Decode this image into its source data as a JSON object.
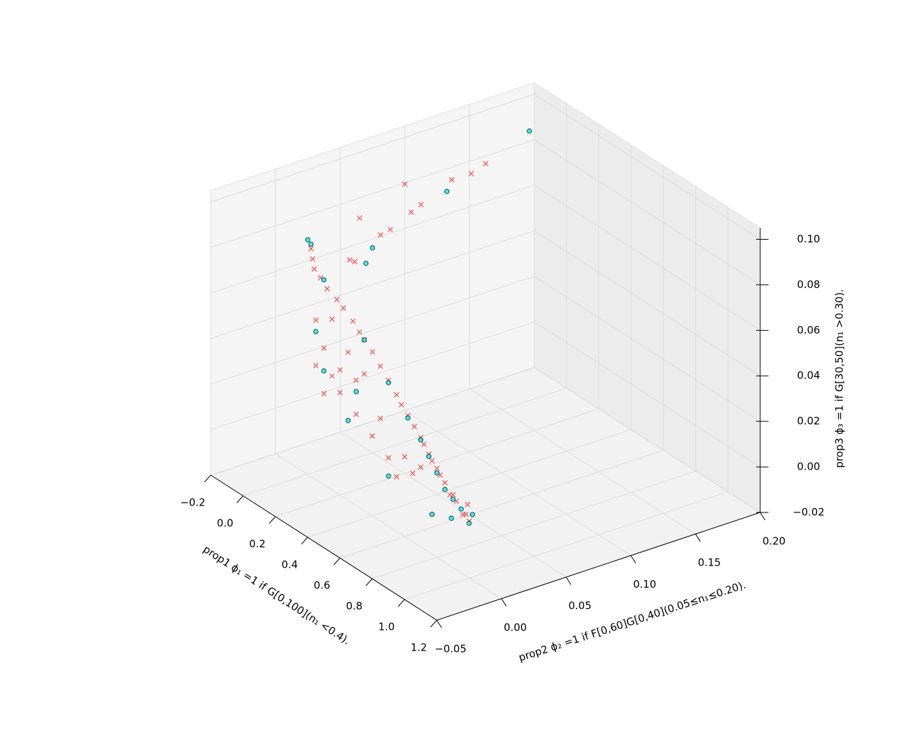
{
  "chart_data": {
    "type": "scatter3d",
    "xlabel": "prop1 ϕ₁ =1 if G[0,100](n₁ <0.4).",
    "ylabel": "prop2 ϕ₂ =1 if F[0,60]G[0,40](0.05≤n₁≤0.20).",
    "zlabel": "prop3 ϕ₃ =1 if G[30,50](n₁ >0.30).",
    "xlim": [
      -0.2,
      1.2
    ],
    "ylim": [
      -0.05,
      0.2
    ],
    "zlim": [
      -0.02,
      0.105
    ],
    "xticks": [
      {
        "value": -0.2,
        "label": "−0.2"
      },
      {
        "value": 0,
        "label": "0.0"
      },
      0.2,
      0.4,
      0.6,
      0.8,
      {
        "value": 1,
        "label": "1.0"
      },
      1.2
    ],
    "yticks": [
      {
        "value": -0.05,
        "label": "−0.05"
      },
      {
        "value": 0,
        "label": "0.00"
      },
      0.05,
      {
        "value": 0.1,
        "label": "0.10"
      },
      0.15,
      {
        "value": 0.2,
        "label": "0.20"
      }
    ],
    "zticks": [
      {
        "value": -0.02,
        "label": "−0.02"
      },
      {
        "value": 0,
        "label": "0.00"
      },
      0.02,
      0.04,
      0.06,
      0.08,
      {
        "value": 0.1,
        "label": "0.10"
      }
    ],
    "grid": true,
    "series": [
      {
        "marker": "x",
        "color": "#ff0000",
        "x": [
          1.0,
          0.98,
          0.96,
          0.95,
          0.92,
          0.9,
          0.88,
          0.85,
          0.82,
          0.8,
          0.77,
          0.75,
          0.72,
          0.7,
          0.66,
          0.62,
          0.58,
          0.55,
          0.5,
          0.45,
          0.4,
          0.35,
          0.32,
          0.28,
          0.22,
          0.18,
          0.12,
          0.08,
          0.04,
          0.03,
          0.02,
          0.1,
          0.2,
          0.3,
          0.4,
          0.5,
          0.55,
          0.1,
          0.2,
          0.3,
          0.15,
          0.05,
          0.45,
          0.6,
          0.65,
          0.05,
          0.25,
          0.35,
          0.7,
          0.15,
          0.1,
          0.05,
          0.0,
          -0.1,
          -0.15,
          -0.19,
          -0.18,
          0.0,
          -0.05,
          0.05,
          -0.12
        ],
        "y": [
          0.0,
          0.0,
          0.0,
          0.005,
          0.0,
          0.0,
          0.0,
          0.0,
          0.0,
          0.0,
          0.0,
          0.0,
          0.0,
          0.0,
          0.0,
          0.0,
          0.0,
          0.0,
          0.0,
          0.0,
          0.0,
          0.0,
          0.0,
          0.0,
          0.0,
          0.0,
          0.0,
          0.0,
          0.0,
          0.0,
          0.0,
          0.0,
          0.0,
          0.0,
          0.0,
          0.0,
          0.0,
          0.0,
          0.0,
          0.0,
          0.0,
          0.0,
          0.0,
          0.0,
          0.0,
          0.0,
          0.0,
          0.0,
          0.0,
          0.0,
          0.02,
          0.05,
          0.08,
          0.1,
          0.13,
          0.15,
          0.16,
          0.04,
          0.07,
          0.03,
          0.09
        ],
        "z": [
          0.005,
          0.007,
          0.006,
          0.009,
          0.01,
          0.012,
          0.011,
          0.015,
          0.017,
          0.019,
          0.021,
          0.023,
          0.026,
          0.028,
          0.031,
          0.034,
          0.037,
          0.04,
          0.044,
          0.048,
          0.052,
          0.055,
          0.057,
          0.06,
          0.063,
          0.065,
          0.067,
          0.07,
          0.072,
          0.076,
          0.08,
          0.02,
          0.025,
          0.02,
          0.015,
          0.01,
          0.004,
          0.04,
          0.035,
          0.035,
          0.055,
          0.05,
          0.025,
          0.015,
          0.01,
          0.03,
          0.045,
          0.04,
          0.015,
          0.03,
          0.075,
          0.078,
          0.08,
          0.075,
          0.078,
          0.075,
          0.078,
          0.085,
          0.072,
          0.07,
          0.085
        ]
      },
      {
        "marker": "o",
        "color": "#00ffff",
        "x": [
          1.0,
          0.98,
          0.95,
          0.9,
          0.93,
          0.85,
          0.8,
          0.75,
          0.7,
          0.62,
          0.5,
          0.35,
          0.1,
          0.02,
          0.0,
          0.05,
          0.1,
          0.3,
          0.5,
          0.2,
          -0.1,
          -0.15,
          0.0,
          0.25,
          0.85
        ],
        "y": [
          0.0,
          0.005,
          0.0,
          0.0,
          -0.005,
          0.0,
          0.0,
          0.0,
          0.0,
          0.0,
          0.0,
          0.0,
          0.0,
          0.0,
          0.0,
          0.0,
          0.0,
          0.0,
          0.0,
          0.02,
          0.12,
          0.19,
          0.05,
          0.0,
          -0.01
        ],
        "z": [
          0.004,
          0.006,
          0.008,
          0.01,
          0.004,
          0.012,
          0.017,
          0.022,
          0.027,
          0.033,
          0.043,
          0.055,
          0.07,
          0.082,
          0.083,
          0.045,
          0.03,
          0.03,
          0.002,
          0.078,
          0.077,
          0.088,
          0.07,
          0.015,
          0.003
        ]
      }
    ]
  }
}
